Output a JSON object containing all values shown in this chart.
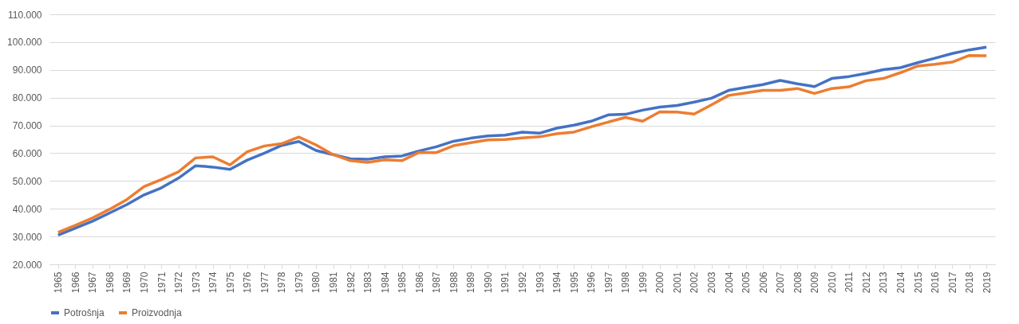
{
  "chart_data": {
    "type": "line",
    "categories": [
      "1965",
      "1966",
      "1967",
      "1968",
      "1969",
      "1970",
      "1971",
      "1972",
      "1973",
      "1974",
      "1975",
      "1976",
      "1977",
      "1978",
      "1979",
      "1980",
      "1981",
      "1982",
      "1983",
      "1984",
      "1985",
      "1986",
      "1987",
      "1988",
      "1989",
      "1990",
      "1991",
      "1992",
      "1993",
      "1994",
      "1995",
      "1996",
      "1997",
      "1998",
      "1999",
      "2000",
      "2001",
      "2002",
      "2003",
      "2004",
      "2005",
      "2006",
      "2007",
      "2008",
      "2009",
      "2010",
      "2011",
      "2012",
      "2013",
      "2014",
      "2015",
      "2016",
      "2017",
      "2018",
      "2019"
    ],
    "series": [
      {
        "name": "Potrošnja",
        "color": "#4472c4",
        "values": [
          30500,
          33000,
          35500,
          38500,
          41500,
          45000,
          47500,
          51000,
          55500,
          55000,
          54200,
          57500,
          60000,
          62800,
          64200,
          61000,
          59500,
          58000,
          57800,
          58700,
          59000,
          60800,
          62300,
          64300,
          65400,
          66200,
          66500,
          67600,
          67200,
          69000,
          70100,
          71500,
          73800,
          74000,
          75500,
          76600,
          77200,
          78400,
          79800,
          82600,
          83700,
          84700,
          86200,
          85000,
          84000,
          86900,
          87600,
          88700,
          90100,
          90800,
          92600,
          94200,
          95900,
          97200,
          98200
        ]
      },
      {
        "name": "Proizvodnja",
        "color": "#ed7d31",
        "values": [
          31500,
          34000,
          36700,
          39800,
          43300,
          48000,
          50500,
          53300,
          58300,
          58700,
          55800,
          60500,
          62600,
          63400,
          65800,
          63000,
          59500,
          57300,
          56700,
          57600,
          57300,
          60300,
          60200,
          62700,
          63800,
          64800,
          64900,
          65500,
          65900,
          67000,
          67600,
          69500,
          71200,
          72900,
          71500,
          74900,
          74800,
          74100,
          77400,
          80800,
          81700,
          82600,
          82600,
          83300,
          81500,
          83300,
          83900,
          86100,
          86900,
          89000,
          91400,
          92000,
          92800,
          95200,
          95100
        ]
      }
    ],
    "ylim": [
      20000,
      110000
    ],
    "yticks": [
      {
        "value": 20000,
        "label": "20.000"
      },
      {
        "value": 30000,
        "label": "30.000"
      },
      {
        "value": 40000,
        "label": "40.000"
      },
      {
        "value": 50000,
        "label": "50.000"
      },
      {
        "value": 60000,
        "label": "60.000"
      },
      {
        "value": 70000,
        "label": "70.000"
      },
      {
        "value": 80000,
        "label": "80.000"
      },
      {
        "value": 90000,
        "label": "90.000"
      },
      {
        "value": 100000,
        "label": "100.000"
      },
      {
        "value": 110000,
        "label": "110.000"
      }
    ],
    "grid": "y",
    "legend": "bottom",
    "marker": "none",
    "line_style": "solid"
  }
}
